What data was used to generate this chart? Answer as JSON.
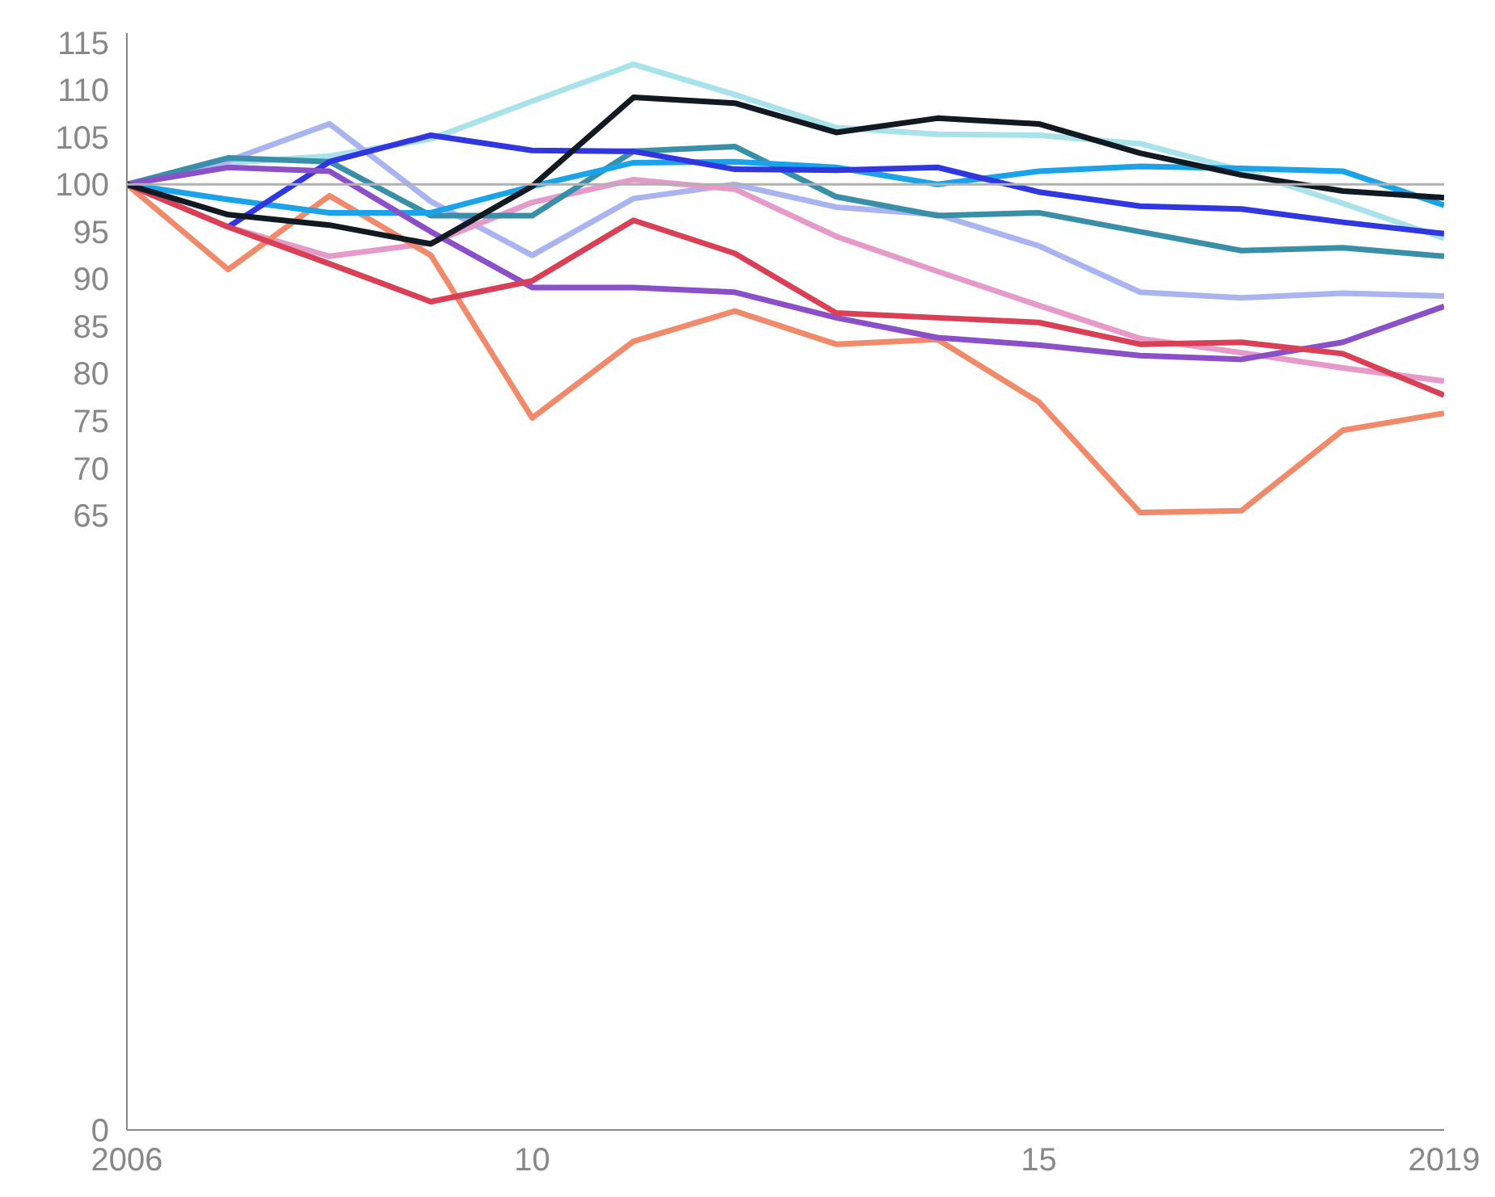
{
  "chart_data": {
    "type": "line",
    "x": [
      2006,
      2007,
      2008,
      2009,
      2010,
      2011,
      2012,
      2013,
      2014,
      2015,
      2016,
      2017,
      2018,
      2019
    ],
    "xlim": [
      2006,
      2019
    ],
    "xticks": [
      2006,
      {
        "value": 2010,
        "label": "10"
      },
      {
        "value": 2015,
        "label": "15"
      },
      2019
    ],
    "ylim": [
      0,
      116
    ],
    "yticks": [
      0,
      65,
      70,
      75,
      80,
      85,
      90,
      95,
      100,
      105,
      110,
      115
    ],
    "grid": false,
    "marker": "none",
    "line_style": "solid",
    "ref_lines": [
      {
        "axis": "y",
        "value": 100,
        "color": "#b0b0b0"
      }
    ],
    "series": [
      {
        "color": "#a8e2ea",
        "values": [
          100,
          102.3,
          103,
          104.8,
          108.8,
          112.7,
          109.5,
          106,
          105.3,
          105.2,
          104.3,
          101.5,
          98,
          94.3
        ]
      },
      {
        "color": "#a9b4f0",
        "values": [
          100,
          102.5,
          106.4,
          98.2,
          92.5,
          98.5,
          100,
          97.6,
          96.8,
          93.5,
          88.6,
          88,
          88.5,
          88.2
        ]
      },
      {
        "color": "#e59ac9",
        "values": [
          100,
          95.5,
          92.4,
          93.8,
          98.1,
          100.5,
          99.5,
          94.5,
          90.8,
          87.2,
          83.7,
          82.2,
          80.6,
          79.2
        ]
      },
      {
        "color": "#f08a6a",
        "values": [
          100,
          91,
          98.8,
          92.5,
          75.3,
          83.4,
          86.6,
          83.1,
          83.6,
          77,
          65.3,
          65.5,
          74,
          75.8
        ]
      },
      {
        "color": "#3a8fa8",
        "values": [
          100,
          102.8,
          102.4,
          96.7,
          96.7,
          103.5,
          104,
          98.7,
          96.7,
          97,
          95,
          93,
          93.3,
          92.4
        ]
      },
      {
        "color": "#1aa3e8",
        "values": [
          100,
          98.4,
          97,
          97,
          99.8,
          102.3,
          102.4,
          101.8,
          100,
          101.4,
          101.9,
          101.7,
          101.4,
          97.8
        ]
      },
      {
        "color": "#3036e0",
        "values": [
          null,
          95.5,
          102.4,
          105.2,
          103.6,
          103.5,
          101.6,
          101.5,
          101.8,
          99.2,
          97.7,
          97.4,
          96,
          94.8
        ]
      },
      {
        "color": "#8b4fc8",
        "values": [
          100,
          101.8,
          101.4,
          95,
          89.1,
          89.1,
          88.6,
          85.9,
          83.8,
          83,
          81.9,
          81.5,
          83.3,
          87.1
        ]
      },
      {
        "color": "#d94055",
        "values": [
          100,
          95.5,
          91.6,
          87.6,
          89.8,
          96.2,
          92.7,
          86.4,
          85.9,
          85.4,
          83.1,
          83.3,
          82.1,
          77.7
        ]
      },
      {
        "color": "#111a22",
        "values": [
          100,
          96.8,
          95.7,
          93.7,
          99.8,
          109.2,
          108.6,
          105.5,
          107,
          106.4,
          103.3,
          101,
          99.3,
          98.6
        ]
      }
    ]
  }
}
